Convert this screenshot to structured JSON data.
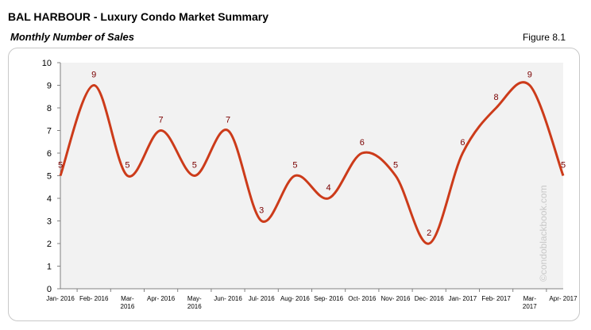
{
  "header": {
    "title": "BAL HARBOUR - Luxury Condo Market Summary",
    "subtitle": "Monthly Number of Sales",
    "figure": "Figure 8.1"
  },
  "watermark": "©condoblackbook.com",
  "colors": {
    "line": "#cc3b1a",
    "label": "#7a0000",
    "plot_bg": "#f2f2f2"
  },
  "chart_data": {
    "type": "line",
    "title": "Monthly Number of Sales",
    "xlabel": "",
    "ylabel": "",
    "ylim": [
      0,
      10
    ],
    "yticks": [
      0,
      1,
      2,
      3,
      4,
      5,
      6,
      7,
      8,
      9,
      10
    ],
    "smooth": true,
    "grid": false,
    "legend": "none",
    "categories": [
      [
        "Jan- 2016"
      ],
      [
        "Feb- 2016"
      ],
      [
        "Mar-",
        "2016"
      ],
      [
        "Apr- 2016"
      ],
      [
        "May-",
        "2016"
      ],
      [
        "Jun- 2016"
      ],
      [
        "Jul- 2016"
      ],
      [
        "Aug- 2016"
      ],
      [
        "Sep- 2016"
      ],
      [
        "Oct- 2016"
      ],
      [
        "Nov- 2016"
      ],
      [
        "Dec- 2016"
      ],
      [
        "Jan- 2017"
      ],
      [
        "Feb- 2017"
      ],
      [
        "Mar-",
        "2017"
      ],
      [
        "Apr- 2017"
      ]
    ],
    "values": [
      5,
      9,
      5,
      7,
      5,
      7,
      3,
      5,
      4,
      6,
      5,
      2,
      6,
      8,
      9,
      5
    ]
  }
}
